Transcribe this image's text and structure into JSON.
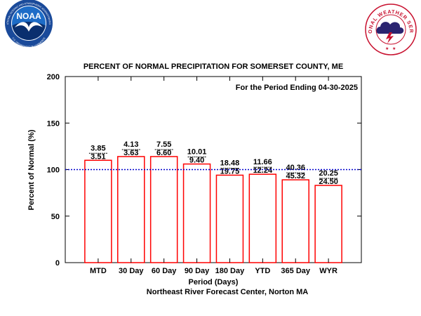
{
  "logos": {
    "noaa": {
      "wordmark": "NOAA",
      "ring_text": "NATIONAL OCEANIC AND ATMOSPHERIC ADMINISTRATION",
      "ring_text_bottom": "U.S. DEPARTMENT OF COMMERCE",
      "colors": {
        "ring": "#ffffff",
        "outer": "#1a4a9a",
        "sky": "#1d6cc7",
        "sea": "#0a2f6e",
        "gull": "#ffffff"
      }
    },
    "nws": {
      "ring_text": "NATIONAL WEATHER SERVICE",
      "colors": {
        "outer": "#c8102e",
        "inner": "#ffffff",
        "cloud": "#2a2470",
        "bolt": "#c8102e"
      }
    }
  },
  "chart_data": {
    "type": "bar",
    "title": "PERCENT OF NORMAL PRECIPITATION FOR SOMERSET COUNTY, ME",
    "subtitle": "For the Period Ending 04-30-2025",
    "xlabel": "Period (Days)",
    "ylabel": "Percent of Normal (%)",
    "credit": "Northeast River Forecast Center, Norton MA",
    "ylim": [
      0,
      200
    ],
    "yticks": [
      "0",
      "50",
      "100",
      "150",
      "200"
    ],
    "reference_line": {
      "value": 100,
      "color": "#0000cc",
      "style": "dotted"
    },
    "bar_color": "#ff0000",
    "categories": [
      "MTD",
      "30 Day",
      "60 Day",
      "90 Day",
      "180 Day",
      "YTD",
      "365 Day",
      "WYR"
    ],
    "values": [
      110,
      114,
      114,
      106,
      94,
      95,
      89,
      83
    ],
    "observed": [
      "3.85",
      "4.13",
      "7.55",
      "10.01",
      "18.48",
      "11.66",
      "40.36",
      "20.25"
    ],
    "normal": [
      "3.51",
      "3.63",
      "6.60",
      "9.40",
      "19.75",
      "12.24",
      "45.32",
      "24.50"
    ]
  }
}
